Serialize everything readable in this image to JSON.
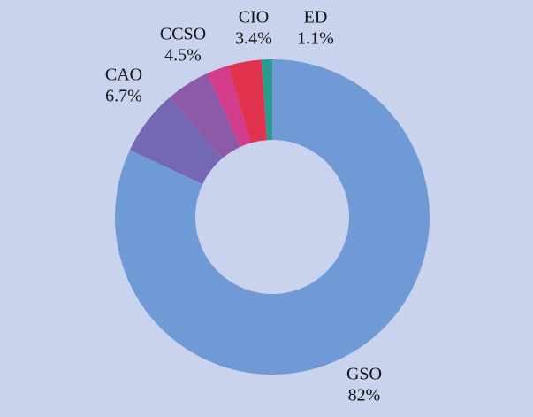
{
  "chart_data": {
    "type": "donut",
    "categories": [
      "GSO",
      "CAO",
      "CCSO",
      null,
      "CIO",
      "ED"
    ],
    "values": [
      82,
      6.7,
      4.5,
      2.3,
      3.4,
      1.1
    ],
    "value_labels": [
      "82%",
      "6.7%",
      "4.5%",
      null,
      "3.4%",
      "1.1%"
    ],
    "colors": [
      "#6f9ad6",
      "#7467b4",
      "#8c5aa6",
      "#d23c8c",
      "#e2334e",
      "#2b9c8c"
    ]
  }
}
